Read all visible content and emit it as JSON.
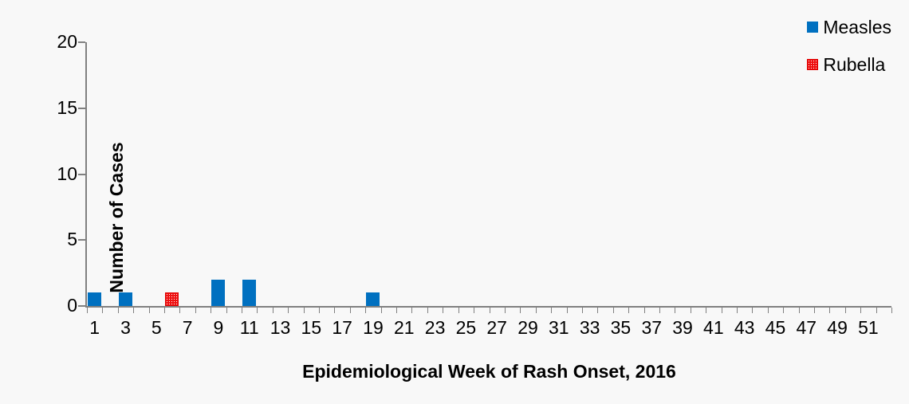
{
  "colors": {
    "measles_blue": "#0070C0",
    "rubella_red": "#EE1111",
    "axis_gray": "#808080",
    "background": "#F8F8F8",
    "text": "#000000"
  },
  "chart_data": {
    "type": "bar",
    "title": "",
    "xlabel": "Epidemiological Week of Rash Onset, 2016",
    "ylabel": "Number of Cases",
    "xlim": [
      0.5,
      52.5
    ],
    "ylim": [
      0,
      20
    ],
    "y_ticks": [
      0,
      5,
      10,
      15,
      20
    ],
    "x_weeks_total": 52,
    "x_tick_labels": [
      1,
      3,
      5,
      7,
      9,
      11,
      13,
      15,
      17,
      19,
      21,
      23,
      25,
      27,
      29,
      31,
      33,
      35,
      37,
      39,
      41,
      43,
      45,
      47,
      49,
      51
    ],
    "grid": false,
    "legend_position": "top-right",
    "legend": [
      {
        "label": "Measles",
        "color": "#0070C0",
        "pattern": "solid"
      },
      {
        "label": "Rubella",
        "color": "#EE1111",
        "pattern": "dots"
      }
    ],
    "series": [
      {
        "name": "Measles",
        "points": [
          {
            "week": 1,
            "cases": 1
          },
          {
            "week": 3,
            "cases": 1
          },
          {
            "week": 9,
            "cases": 2
          },
          {
            "week": 11,
            "cases": 2
          },
          {
            "week": 19,
            "cases": 1
          }
        ]
      },
      {
        "name": "Rubella",
        "points": [
          {
            "week": 6,
            "cases": 1
          }
        ]
      }
    ]
  }
}
